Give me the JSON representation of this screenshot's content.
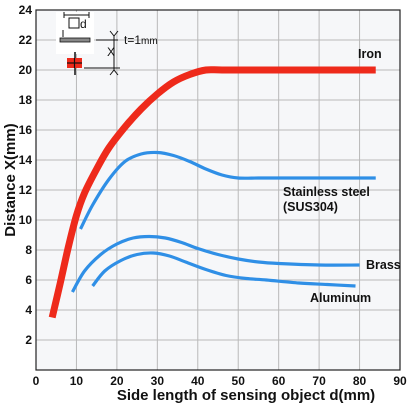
{
  "chart_data": {
    "type": "line",
    "xlabel": "Side length of sensing object d(mm)",
    "ylabel": "Distance X(mm)",
    "xlim": [
      0,
      90
    ],
    "ylim": [
      0,
      24
    ],
    "xticks": [
      0,
      10,
      20,
      30,
      40,
      50,
      60,
      70,
      80,
      90
    ],
    "yticks": [
      2,
      4,
      6,
      8,
      10,
      12,
      14,
      16,
      18,
      20,
      22,
      24
    ],
    "grid": true,
    "series": [
      {
        "name": "Iron",
        "color": "#ee2a1b",
        "x": [
          4,
          6,
          8,
          10,
          12,
          15,
          18,
          22,
          26,
          30,
          34,
          38,
          42,
          46,
          55,
          65,
          75,
          84
        ],
        "y": [
          3.5,
          5.8,
          8.2,
          10.3,
          11.8,
          13.4,
          14.8,
          16.2,
          17.4,
          18.4,
          19.2,
          19.7,
          20,
          20,
          20,
          20,
          20,
          20
        ]
      },
      {
        "name": "Stainless steel\n(SUS304)",
        "color": "#2f8fe6",
        "x": [
          11,
          14,
          18,
          22,
          26,
          30,
          34,
          38,
          42,
          46,
          50,
          55,
          60,
          70,
          80,
          84
        ],
        "y": [
          9.4,
          11,
          12.7,
          13.9,
          14.4,
          14.5,
          14.3,
          13.9,
          13.4,
          13,
          12.8,
          12.8,
          12.8,
          12.8,
          12.8,
          12.8
        ]
      },
      {
        "name": "Brass",
        "color": "#2f8fe6",
        "x": [
          9,
          12,
          16,
          20,
          24,
          28,
          32,
          36,
          40,
          45,
          50,
          55,
          60,
          70,
          80
        ],
        "y": [
          5.2,
          6.6,
          7.7,
          8.4,
          8.8,
          8.9,
          8.8,
          8.5,
          8.1,
          7.7,
          7.4,
          7.2,
          7.1,
          7,
          7
        ]
      },
      {
        "name": "Aluminum",
        "color": "#2f8fe6",
        "x": [
          14,
          17,
          21,
          25,
          29,
          33,
          37,
          42,
          47,
          52,
          57,
          65,
          72,
          79
        ],
        "y": [
          5.6,
          6.6,
          7.3,
          7.7,
          7.8,
          7.6,
          7.2,
          6.7,
          6.3,
          6.1,
          6,
          5.8,
          5.7,
          5.6
        ]
      }
    ]
  },
  "diagram": {
    "box_label": "d",
    "thickness_label": "t=1",
    "thickness_unit": "mm",
    "distance_label": "X"
  },
  "colors": {
    "grid": "#b9b9b9",
    "plot_background": "#f6f7f9"
  }
}
